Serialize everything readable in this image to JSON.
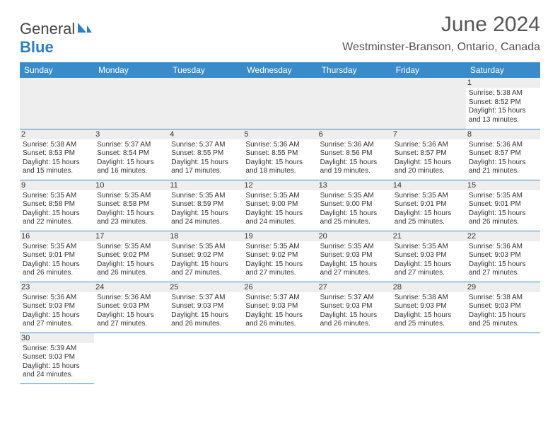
{
  "brand": {
    "name_part1": "General",
    "name_part2": "Blue"
  },
  "header": {
    "title": "June 2024",
    "location": "Westminster-Branson, Ontario, Canada"
  },
  "calendar": {
    "day_headers": [
      "Sunday",
      "Monday",
      "Tuesday",
      "Wednesday",
      "Thursday",
      "Friday",
      "Saturday"
    ],
    "header_bg": "#3a8bc9",
    "header_fg": "#ffffff",
    "daynum_bg": "#eeeeee",
    "rule_color": "#3a8bc9",
    "text_color": "#333333",
    "fontsize_header": 12,
    "fontsize_cell": 10,
    "weeks": [
      [
        null,
        null,
        null,
        null,
        null,
        null,
        {
          "n": "1",
          "sunrise": "5:38 AM",
          "sunset": "8:52 PM",
          "daylight": "15 hours and 13 minutes."
        }
      ],
      [
        {
          "n": "2",
          "sunrise": "5:38 AM",
          "sunset": "8:53 PM",
          "daylight": "15 hours and 15 minutes."
        },
        {
          "n": "3",
          "sunrise": "5:37 AM",
          "sunset": "8:54 PM",
          "daylight": "15 hours and 16 minutes."
        },
        {
          "n": "4",
          "sunrise": "5:37 AM",
          "sunset": "8:55 PM",
          "daylight": "15 hours and 17 minutes."
        },
        {
          "n": "5",
          "sunrise": "5:36 AM",
          "sunset": "8:55 PM",
          "daylight": "15 hours and 18 minutes."
        },
        {
          "n": "6",
          "sunrise": "5:36 AM",
          "sunset": "8:56 PM",
          "daylight": "15 hours and 19 minutes."
        },
        {
          "n": "7",
          "sunrise": "5:36 AM",
          "sunset": "8:57 PM",
          "daylight": "15 hours and 20 minutes."
        },
        {
          "n": "8",
          "sunrise": "5:36 AM",
          "sunset": "8:57 PM",
          "daylight": "15 hours and 21 minutes."
        }
      ],
      [
        {
          "n": "9",
          "sunrise": "5:35 AM",
          "sunset": "8:58 PM",
          "daylight": "15 hours and 22 minutes."
        },
        {
          "n": "10",
          "sunrise": "5:35 AM",
          "sunset": "8:58 PM",
          "daylight": "15 hours and 23 minutes."
        },
        {
          "n": "11",
          "sunrise": "5:35 AM",
          "sunset": "8:59 PM",
          "daylight": "15 hours and 24 minutes."
        },
        {
          "n": "12",
          "sunrise": "5:35 AM",
          "sunset": "9:00 PM",
          "daylight": "15 hours and 24 minutes."
        },
        {
          "n": "13",
          "sunrise": "5:35 AM",
          "sunset": "9:00 PM",
          "daylight": "15 hours and 25 minutes."
        },
        {
          "n": "14",
          "sunrise": "5:35 AM",
          "sunset": "9:01 PM",
          "daylight": "15 hours and 25 minutes."
        },
        {
          "n": "15",
          "sunrise": "5:35 AM",
          "sunset": "9:01 PM",
          "daylight": "15 hours and 26 minutes."
        }
      ],
      [
        {
          "n": "16",
          "sunrise": "5:35 AM",
          "sunset": "9:01 PM",
          "daylight": "15 hours and 26 minutes."
        },
        {
          "n": "17",
          "sunrise": "5:35 AM",
          "sunset": "9:02 PM",
          "daylight": "15 hours and 26 minutes."
        },
        {
          "n": "18",
          "sunrise": "5:35 AM",
          "sunset": "9:02 PM",
          "daylight": "15 hours and 27 minutes."
        },
        {
          "n": "19",
          "sunrise": "5:35 AM",
          "sunset": "9:02 PM",
          "daylight": "15 hours and 27 minutes."
        },
        {
          "n": "20",
          "sunrise": "5:35 AM",
          "sunset": "9:03 PM",
          "daylight": "15 hours and 27 minutes."
        },
        {
          "n": "21",
          "sunrise": "5:35 AM",
          "sunset": "9:03 PM",
          "daylight": "15 hours and 27 minutes."
        },
        {
          "n": "22",
          "sunrise": "5:36 AM",
          "sunset": "9:03 PM",
          "daylight": "15 hours and 27 minutes."
        }
      ],
      [
        {
          "n": "23",
          "sunrise": "5:36 AM",
          "sunset": "9:03 PM",
          "daylight": "15 hours and 27 minutes."
        },
        {
          "n": "24",
          "sunrise": "5:36 AM",
          "sunset": "9:03 PM",
          "daylight": "15 hours and 27 minutes."
        },
        {
          "n": "25",
          "sunrise": "5:37 AM",
          "sunset": "9:03 PM",
          "daylight": "15 hours and 26 minutes."
        },
        {
          "n": "26",
          "sunrise": "5:37 AM",
          "sunset": "9:03 PM",
          "daylight": "15 hours and 26 minutes."
        },
        {
          "n": "27",
          "sunrise": "5:37 AM",
          "sunset": "9:03 PM",
          "daylight": "15 hours and 26 minutes."
        },
        {
          "n": "28",
          "sunrise": "5:38 AM",
          "sunset": "9:03 PM",
          "daylight": "15 hours and 25 minutes."
        },
        {
          "n": "29",
          "sunrise": "5:38 AM",
          "sunset": "9:03 PM",
          "daylight": "15 hours and 25 minutes."
        }
      ],
      [
        {
          "n": "30",
          "sunrise": "5:39 AM",
          "sunset": "9:03 PM",
          "daylight": "15 hours and 24 minutes."
        },
        null,
        null,
        null,
        null,
        null,
        null
      ]
    ],
    "labels": {
      "sunrise": "Sunrise:",
      "sunset": "Sunset:",
      "daylight": "Daylight:"
    }
  }
}
